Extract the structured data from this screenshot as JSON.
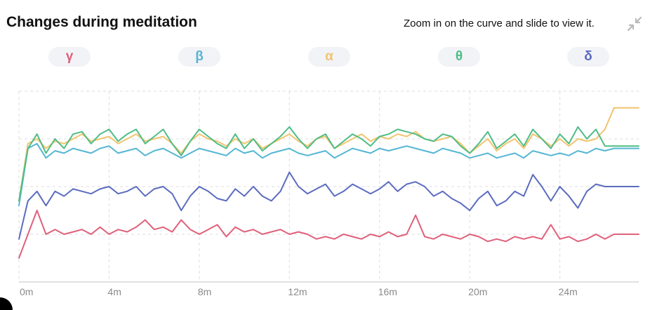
{
  "header": {
    "title": "Changes during meditation",
    "hint": "Zoom in on the curve and slide to view it.",
    "collapse_icon": "collapse-arrows-icon"
  },
  "legend": [
    {
      "key": "gamma",
      "label": "γ",
      "color": "#e0607a"
    },
    {
      "key": "beta",
      "label": "β",
      "color": "#55b6d4"
    },
    {
      "key": "alpha",
      "label": "α",
      "color": "#f2c46e"
    },
    {
      "key": "theta",
      "label": "θ",
      "color": "#4fbd86"
    },
    {
      "key": "delta",
      "label": "δ",
      "color": "#5b6bbf"
    }
  ],
  "chart_data": {
    "type": "line",
    "xlabel": "",
    "ylabel": "",
    "x_unit": "minutes",
    "x_ticks": [
      0,
      4,
      8,
      12,
      16,
      20,
      24
    ],
    "x_tick_labels": [
      "0m",
      "4m",
      "8m",
      "12m",
      "16m",
      "20m",
      "24m"
    ],
    "xlim": [
      0,
      27.5
    ],
    "ylim": [
      0,
      4
    ],
    "y_gridlines": [
      1,
      2,
      3,
      4
    ],
    "grid": true,
    "x": [
      0,
      0.4,
      0.8,
      1.2,
      1.6,
      2,
      2.4,
      2.8,
      3.2,
      3.6,
      4,
      4.4,
      4.8,
      5.2,
      5.6,
      6,
      6.4,
      6.8,
      7.2,
      7.6,
      8,
      8.4,
      8.8,
      9.2,
      9.6,
      10,
      10.4,
      10.8,
      11.2,
      11.6,
      12,
      12.4,
      12.8,
      13.2,
      13.6,
      14,
      14.4,
      14.8,
      15.2,
      15.6,
      16,
      16.4,
      16.8,
      17.2,
      17.6,
      18,
      18.4,
      18.8,
      19.2,
      19.6,
      20,
      20.4,
      20.8,
      21.2,
      21.6,
      22,
      22.4,
      22.8,
      23.2,
      23.6,
      24,
      24.4,
      24.8,
      25.2,
      25.6,
      26,
      26.4,
      26.8,
      27.2,
      27.5
    ],
    "series": [
      {
        "name": "γ",
        "color": "#e0607a",
        "values": [
          0.5,
          1.0,
          1.5,
          1.0,
          1.1,
          1.0,
          1.05,
          1.1,
          1.0,
          1.15,
          1.0,
          1.1,
          1.05,
          1.15,
          1.3,
          1.1,
          1.15,
          1.05,
          1.3,
          1.1,
          1.0,
          1.1,
          1.2,
          0.95,
          1.15,
          1.05,
          1.1,
          1.0,
          1.05,
          1.1,
          1.0,
          1.05,
          1.0,
          0.9,
          0.95,
          0.9,
          1.0,
          0.95,
          0.9,
          1.0,
          0.95,
          1.05,
          0.95,
          1.0,
          1.4,
          0.95,
          0.9,
          1.0,
          0.95,
          0.9,
          1.0,
          0.95,
          0.85,
          0.9,
          0.85,
          0.95,
          0.9,
          0.95,
          0.9,
          1.2,
          0.9,
          0.95,
          0.85,
          0.9,
          1.0,
          0.9,
          1.0,
          1.0,
          1.0,
          1.0
        ]
      },
      {
        "name": "β",
        "color": "#55b6d4",
        "values": [
          1.6,
          2.8,
          2.9,
          2.6,
          2.75,
          2.7,
          2.8,
          2.75,
          2.7,
          2.8,
          2.85,
          2.7,
          2.75,
          2.8,
          2.65,
          2.75,
          2.8,
          2.7,
          2.6,
          2.7,
          2.8,
          2.75,
          2.7,
          2.65,
          2.8,
          2.7,
          2.75,
          2.6,
          2.7,
          2.75,
          2.8,
          2.7,
          2.65,
          2.7,
          2.75,
          2.6,
          2.7,
          2.8,
          2.75,
          2.7,
          2.8,
          2.75,
          2.8,
          2.85,
          2.8,
          2.75,
          2.7,
          2.8,
          2.75,
          2.7,
          2.6,
          2.65,
          2.7,
          2.6,
          2.65,
          2.7,
          2.6,
          2.75,
          2.7,
          2.65,
          2.7,
          2.65,
          2.75,
          2.7,
          2.8,
          2.75,
          2.8,
          2.8,
          2.8,
          2.8
        ]
      },
      {
        "name": "α",
        "color": "#f2c46e",
        "values": [
          1.7,
          2.9,
          3.0,
          2.8,
          2.95,
          2.9,
          3.0,
          3.1,
          2.95,
          3.0,
          3.05,
          2.9,
          3.0,
          3.1,
          2.95,
          3.0,
          3.05,
          2.9,
          2.7,
          2.95,
          3.1,
          3.0,
          2.95,
          2.85,
          3.0,
          2.9,
          3.0,
          2.8,
          2.9,
          3.0,
          3.1,
          2.95,
          2.85,
          3.0,
          3.05,
          2.8,
          2.9,
          3.0,
          3.1,
          2.95,
          3.05,
          3.0,
          3.1,
          3.05,
          3.15,
          3.0,
          2.95,
          3.0,
          3.05,
          2.9,
          2.7,
          2.85,
          3.0,
          2.75,
          2.9,
          3.0,
          2.8,
          3.1,
          3.0,
          2.85,
          3.0,
          2.85,
          3.0,
          2.95,
          3.0,
          3.2,
          3.65,
          3.65,
          3.65,
          3.65
        ]
      },
      {
        "name": "θ",
        "color": "#4fbd86",
        "values": [
          1.7,
          2.8,
          3.1,
          2.7,
          3.0,
          2.8,
          3.1,
          3.15,
          2.9,
          3.1,
          3.2,
          2.95,
          3.1,
          3.2,
          2.9,
          3.05,
          3.2,
          2.9,
          2.65,
          2.95,
          3.2,
          3.05,
          2.9,
          2.8,
          3.1,
          2.8,
          3.0,
          2.75,
          2.9,
          3.05,
          3.25,
          3.0,
          2.8,
          3.0,
          3.1,
          2.8,
          2.95,
          3.1,
          3.0,
          2.85,
          3.05,
          3.1,
          3.2,
          3.15,
          3.1,
          3.0,
          2.95,
          3.1,
          3.05,
          2.85,
          2.7,
          2.9,
          3.15,
          2.8,
          2.95,
          3.1,
          2.85,
          3.2,
          3.0,
          2.8,
          3.1,
          2.9,
          3.25,
          3.0,
          3.2,
          2.85,
          2.85,
          2.85,
          2.85,
          2.85
        ]
      },
      {
        "name": "δ",
        "color": "#5b6bbf",
        "values": [
          0.9,
          1.7,
          1.9,
          1.6,
          1.9,
          1.8,
          1.95,
          1.9,
          1.85,
          1.95,
          2.0,
          1.85,
          1.9,
          2.0,
          1.8,
          1.95,
          2.0,
          1.85,
          1.5,
          1.8,
          2.0,
          1.9,
          1.75,
          1.7,
          1.95,
          1.8,
          2.0,
          1.8,
          1.7,
          1.9,
          2.3,
          2.0,
          1.85,
          1.95,
          2.05,
          1.8,
          1.9,
          2.05,
          1.95,
          1.85,
          1.95,
          2.1,
          1.9,
          2.05,
          2.1,
          2.0,
          1.8,
          1.9,
          1.75,
          1.65,
          1.5,
          1.75,
          1.9,
          1.6,
          1.7,
          1.9,
          1.8,
          2.25,
          2.0,
          1.7,
          2.0,
          1.8,
          1.55,
          1.9,
          2.05,
          2.0,
          2.0,
          2.0,
          2.0,
          2.0
        ]
      }
    ]
  }
}
